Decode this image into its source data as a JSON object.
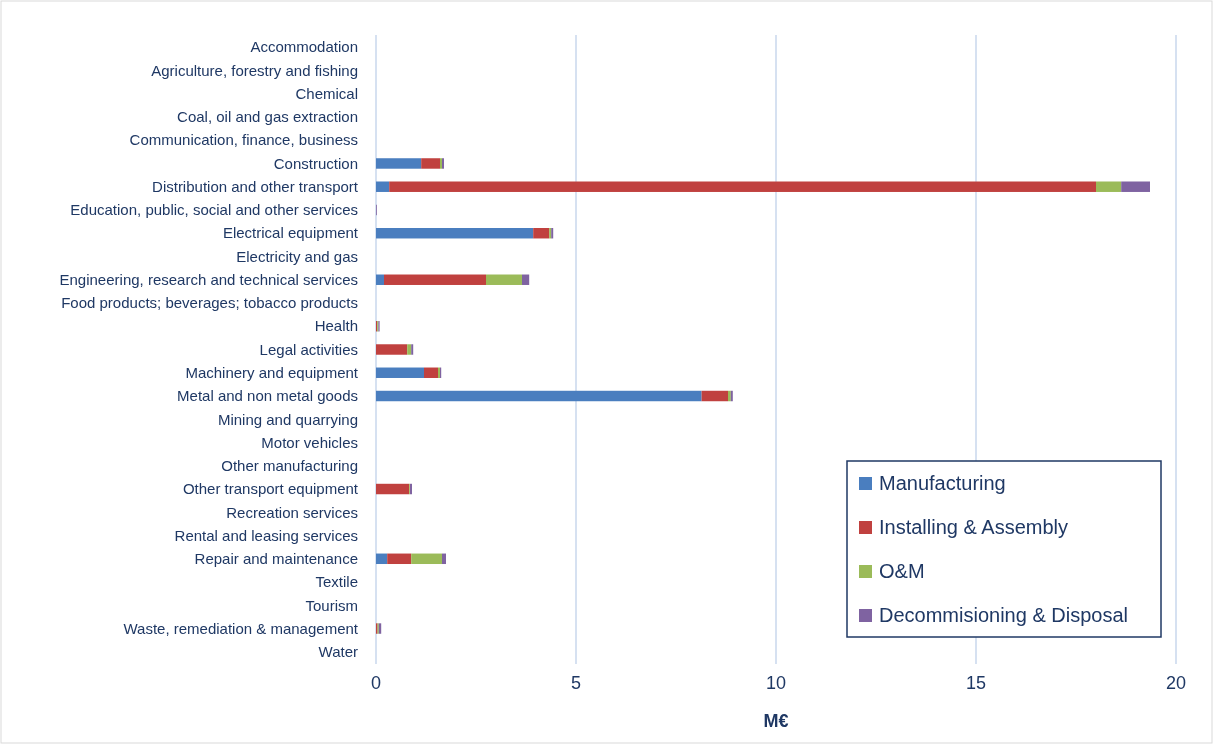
{
  "chart_data": {
    "type": "bar",
    "orientation": "horizontal",
    "stacked": true,
    "xlabel": "M€",
    "categories": [
      "Accommodation",
      "Agriculture, forestry and fishing",
      "Chemical",
      "Coal, oil and gas extraction",
      "Communication, finance, business",
      "Construction",
      "Distribution and other transport",
      "Education, public, social and other services",
      "Electrical equipment",
      "Electricity and gas",
      "Engineering, research and technical services",
      "Food products; beverages; tobacco products",
      "Health",
      "Legal activities",
      "Machinery and equipment",
      "Metal and non metal goods",
      "Mining and quarrying",
      "Motor vehicles",
      "Other manufacturing",
      "Other transport equipment",
      "Recreation services",
      "Rental and leasing services",
      "Repair and maintenance",
      "Textile",
      "Tourism",
      "Waste, remediation & management",
      "Water"
    ],
    "series": [
      {
        "name": "Manufacturing",
        "color": "#4a7ebf",
        "values": [
          0,
          0,
          0,
          0,
          0,
          1.13,
          0.33,
          0,
          3.93,
          0,
          0.2,
          0,
          0,
          0,
          1.2,
          8.14,
          0,
          0,
          0,
          0,
          0,
          0,
          0.28,
          0,
          0,
          0,
          0
        ]
      },
      {
        "name": "Installing & Assembly",
        "color": "#c0413f",
        "values": [
          0,
          0,
          0,
          0,
          0,
          0.47,
          17.67,
          0,
          0.4,
          0,
          2.55,
          0,
          0.03,
          0.78,
          0.35,
          0.66,
          0,
          0,
          0,
          0.83,
          0,
          0,
          0.6,
          0,
          0,
          0.04,
          0
        ]
      },
      {
        "name": "O&M",
        "color": "#9bbb59",
        "values": [
          0,
          0,
          0,
          0,
          0,
          0.05,
          0.63,
          0,
          0.05,
          0,
          0.9,
          0,
          0.03,
          0.1,
          0.05,
          0.07,
          0,
          0,
          0,
          0.02,
          0,
          0,
          0.77,
          0,
          0,
          0.03,
          0
        ]
      },
      {
        "name": "Decommisioning & Disposal",
        "color": "#7f63a1",
        "values": [
          0,
          0,
          0,
          0,
          0,
          0.05,
          0.72,
          0.02,
          0.05,
          0,
          0.18,
          0,
          0.03,
          0.05,
          0.03,
          0.05,
          0,
          0,
          0,
          0.05,
          0,
          0,
          0.1,
          0,
          0,
          0.06,
          0
        ]
      }
    ],
    "xlim": [
      0,
      20
    ],
    "xticks": [
      0,
      5,
      10,
      15,
      20
    ],
    "grid": "x",
    "legend": "bottom right"
  }
}
